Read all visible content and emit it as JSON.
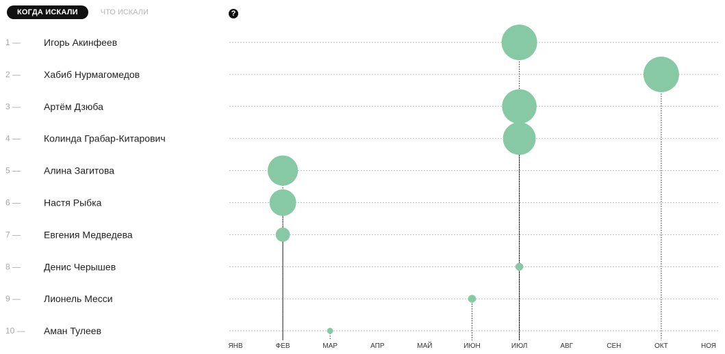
{
  "tabs": {
    "active": "КОГДА ИСКАЛИ",
    "inactive": "ЧТО ИСКАЛИ"
  },
  "help_icon": {
    "icon": "question-circle-icon",
    "glyph": "?"
  },
  "colors": {
    "bubble": "#86c9a4",
    "tab_bg": "#111111",
    "grid": "#bbbbbb"
  },
  "chart_data": {
    "type": "scatter",
    "x_categories": [
      "ЯНВ",
      "ФЕВ",
      "МАР",
      "АПР",
      "МАЙ",
      "ИЮН",
      "ИЮЛ",
      "АВГ",
      "СЕН",
      "ОКТ",
      "НОЯ"
    ],
    "rows": [
      {
        "rank": "1 —",
        "name": "Игорь Акинфеев",
        "month": 6.0,
        "size": 1.0
      },
      {
        "rank": "2 —",
        "name": "Хабиб Нурмагомедов",
        "month": 9.0,
        "size": 1.0
      },
      {
        "rank": "3 —",
        "name": "Артём Дзюба",
        "month": 6.0,
        "size": 0.97
      },
      {
        "rank": "4 —",
        "name": "Колинда Грабар-Китарович",
        "month": 6.0,
        "size": 0.92
      },
      {
        "rank": "5 —",
        "name": "Алина Загитова",
        "month": 1.0,
        "size": 0.85
      },
      {
        "rank": "6 —",
        "name": "Настя Рыбка",
        "month": 1.0,
        "size": 0.75
      },
      {
        "rank": "7 —",
        "name": "Евгения Медведева",
        "month": 1.0,
        "size": 0.4
      },
      {
        "rank": "8 —",
        "name": "Денис Черышев",
        "month": 6.0,
        "size": 0.22
      },
      {
        "rank": "9 —",
        "name": "Лионель Месси",
        "month": 5.0,
        "size": 0.22
      },
      {
        "rank": "10 —",
        "name": "Аман Тулеев",
        "month": 2.0,
        "size": 0.17
      }
    ],
    "grid": true
  }
}
